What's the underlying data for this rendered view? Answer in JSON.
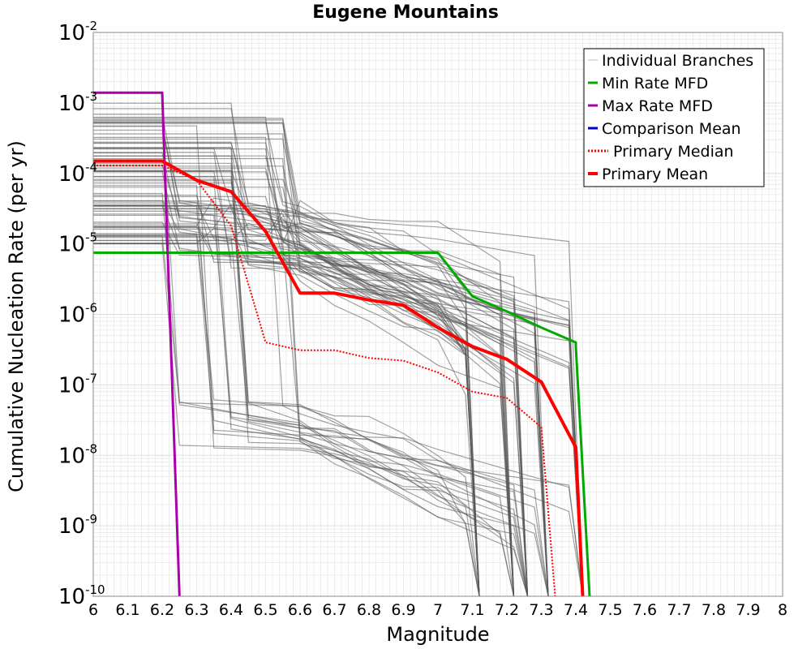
{
  "chart_data": {
    "type": "line",
    "title": "Eugene Mountains",
    "xlabel": "Magnitude",
    "ylabel": "Cumulative Nucleation Rate (per yr)",
    "xlim": [
      6.0,
      8.0
    ],
    "ylim_log10": [
      -10,
      -2
    ],
    "y_scale": "log",
    "x_ticks": [
      "6",
      "6.1",
      "6.2",
      "6.3",
      "6.4",
      "6.5",
      "6.6",
      "6.7",
      "6.8",
      "6.9",
      "7",
      "7.1",
      "7.2",
      "7.3",
      "7.4",
      "7.5",
      "7.6",
      "7.7",
      "7.8",
      "7.9",
      "8"
    ],
    "y_ticks": [
      {
        "base": "10",
        "exp": "-2",
        "log10": -2
      },
      {
        "base": "10",
        "exp": "-3",
        "log10": -3
      },
      {
        "base": "10",
        "exp": "-4",
        "log10": -4
      },
      {
        "base": "10",
        "exp": "-5",
        "log10": -5
      },
      {
        "base": "10",
        "exp": "-6",
        "log10": -6
      },
      {
        "base": "10",
        "exp": "-7",
        "log10": -7
      },
      {
        "base": "10",
        "exp": "-8",
        "log10": -8
      },
      {
        "base": "10",
        "exp": "-9",
        "log10": -9
      },
      {
        "base": "10",
        "exp": "-10",
        "log10": -10
      }
    ],
    "grid": true,
    "legend_position": "top-right",
    "legend": [
      {
        "label": "Individual Branches",
        "color": "#bbbbbb",
        "style": "solid",
        "width": 1
      },
      {
        "label": "Min Rate MFD",
        "color": "#00aa00",
        "style": "solid",
        "width": 3
      },
      {
        "label": "Max Rate MFD",
        "color": "#aa00aa",
        "style": "solid",
        "width": 3
      },
      {
        "label": "Comparison Mean",
        "color": "#0000cc",
        "style": "solid",
        "width": 3
      },
      {
        "label": "Primary Median",
        "color": "#ff0000",
        "style": "dotted",
        "width": 3
      },
      {
        "label": "Primary Mean",
        "color": "#ff0000",
        "style": "solid",
        "width": 4
      }
    ],
    "series": [
      {
        "name": "Min Rate MFD",
        "color": "#00aa00",
        "x": [
          6.0,
          7.0,
          7.1,
          7.2,
          7.3,
          7.4,
          7.4,
          7.44
        ],
        "y": [
          7.5e-06,
          7.5e-06,
          1.8e-06,
          1.1e-06,
          6.5e-07,
          4e-07,
          3.5e-07,
          1e-10
        ]
      },
      {
        "name": "Max Rate MFD",
        "color": "#aa00aa",
        "x": [
          6.0,
          6.2,
          6.25
        ],
        "y": [
          0.0014,
          0.0014,
          1e-10
        ]
      },
      {
        "name": "Primary Median",
        "color": "#ff0000",
        "x": [
          6.0,
          6.2,
          6.3,
          6.4,
          6.5,
          6.6,
          6.7,
          6.8,
          6.9,
          7.0,
          7.1,
          7.2,
          7.3,
          7.34
        ],
        "y": [
          0.00013,
          0.00013,
          8e-05,
          1.8e-05,
          4e-07,
          3.1e-07,
          3.1e-07,
          2.4e-07,
          2.2e-07,
          1.5e-07,
          8e-08,
          6.5e-08,
          2.5e-08,
          1e-10
        ]
      },
      {
        "name": "Primary Mean",
        "color": "#ff0000",
        "x": [
          6.0,
          6.2,
          6.3,
          6.4,
          6.5,
          6.6,
          6.7,
          6.8,
          6.9,
          7.0,
          7.1,
          7.2,
          7.3,
          7.4,
          7.42
        ],
        "y": [
          0.00015,
          0.00015,
          8e-05,
          5.5e-05,
          1.5e-05,
          2e-06,
          2e-06,
          1.6e-06,
          1.35e-06,
          6.5e-07,
          3.5e-07,
          2.3e-07,
          1.1e-07,
          1.3e-08,
          1e-10
        ]
      }
    ],
    "individual_branches": {
      "count": 80,
      "color": "#555555",
      "seed": 7,
      "plateau_range_log10": [
        -5.0,
        -3.0
      ],
      "drop_magnitudes": [
        6.2,
        6.3,
        6.35,
        6.4,
        6.5,
        6.55
      ],
      "mid_range_log10": [
        -5.4,
        -4.3
      ],
      "low_range_log10": [
        -7.9,
        -7.2
      ],
      "tail_end_magnitudes": [
        7.1,
        7.2,
        7.24,
        7.3,
        7.4
      ]
    }
  }
}
